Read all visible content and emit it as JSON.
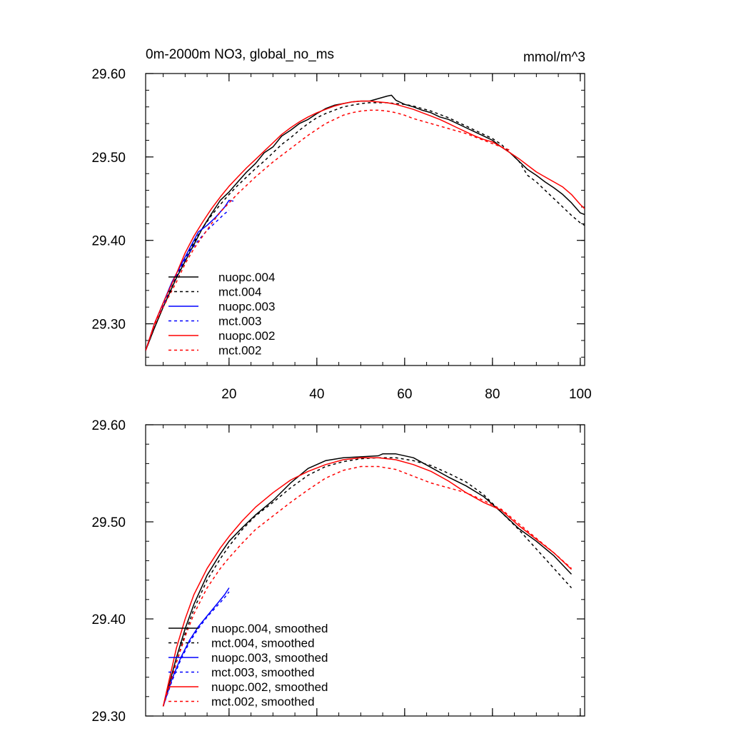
{
  "header": {
    "title": "0m-2000m NO3, global_no_ms",
    "units": "mmol/m^3"
  },
  "colors": {
    "black": "#000000",
    "blue": "#0000ff",
    "red": "#ff0000"
  },
  "chart_data": [
    {
      "type": "line",
      "title": "0m-2000m NO3, global_no_ms",
      "units_label": "mmol/m^3",
      "xlabel": "",
      "ylabel": "",
      "xlim": [
        1,
        101
      ],
      "ylim": [
        29.25,
        29.6
      ],
      "xticks": [
        20,
        40,
        60,
        80,
        100
      ],
      "xtick_labels": [
        "20",
        "40",
        "60",
        "80",
        "100"
      ],
      "yticks": [
        29.3,
        29.4,
        29.5,
        29.6
      ],
      "ytick_labels": [
        "29.30",
        "29.40",
        "29.50",
        "29.60"
      ],
      "legend_position": "bottom-left",
      "series": [
        {
          "name": "nuopc.004",
          "color": "#000000",
          "dash": false,
          "x": [
            1,
            3,
            5,
            8,
            10,
            12,
            14,
            16,
            18,
            20,
            22,
            24,
            26,
            28,
            30,
            32,
            34,
            36,
            38,
            40,
            42,
            44,
            46,
            48,
            50,
            52,
            54,
            56,
            57,
            58,
            60,
            62,
            64,
            66,
            68,
            70,
            72,
            74,
            76,
            78,
            80,
            82,
            84,
            86,
            88,
            90,
            92,
            94,
            96,
            98,
            100,
            101
          ],
          "y": [
            29.268,
            29.295,
            29.32,
            29.355,
            29.375,
            29.395,
            29.415,
            29.432,
            29.448,
            29.458,
            29.47,
            29.482,
            29.492,
            29.505,
            29.512,
            29.525,
            29.532,
            29.54,
            29.545,
            29.552,
            29.558,
            29.562,
            29.564,
            29.566,
            29.567,
            29.567,
            29.57,
            29.573,
            29.574,
            29.568,
            29.563,
            29.56,
            29.556,
            29.553,
            29.548,
            29.545,
            29.54,
            29.535,
            29.53,
            29.525,
            29.52,
            29.512,
            29.505,
            29.495,
            29.485,
            29.478,
            29.47,
            29.463,
            29.455,
            29.445,
            29.433,
            29.431
          ]
        },
        {
          "name": "mct.004",
          "color": "#000000",
          "dash": true,
          "x": [
            1,
            3,
            5,
            8,
            10,
            12,
            14,
            16,
            18,
            20,
            22,
            24,
            26,
            28,
            30,
            32,
            34,
            36,
            38,
            40,
            42,
            44,
            46,
            48,
            50,
            52,
            54,
            56,
            58,
            60,
            62,
            64,
            66,
            68,
            70,
            72,
            74,
            76,
            78,
            80,
            82,
            84,
            86,
            88,
            90,
            92,
            94,
            96,
            98,
            100,
            101
          ],
          "y": [
            29.268,
            29.295,
            29.32,
            29.356,
            29.378,
            29.398,
            29.415,
            29.43,
            29.443,
            29.455,
            29.466,
            29.476,
            29.486,
            29.495,
            29.505,
            29.515,
            29.523,
            29.532,
            29.54,
            29.547,
            29.552,
            29.556,
            29.56,
            29.562,
            29.564,
            29.565,
            29.565,
            29.565,
            29.564,
            29.563,
            29.561,
            29.558,
            29.555,
            29.551,
            29.547,
            29.542,
            29.537,
            29.532,
            29.527,
            29.522,
            29.515,
            29.505,
            29.495,
            29.478,
            29.47,
            29.46,
            29.45,
            29.44,
            29.43,
            29.421,
            29.418
          ]
        },
        {
          "name": "nuopc.003",
          "color": "#0000ff",
          "dash": false,
          "x": [
            1,
            3,
            5,
            7,
            9,
            11,
            13,
            15,
            17,
            19,
            20,
            21
          ],
          "y": [
            29.268,
            29.3,
            29.325,
            29.35,
            29.37,
            29.39,
            29.41,
            29.418,
            29.428,
            29.44,
            29.448,
            29.447
          ]
        },
        {
          "name": "mct.003",
          "color": "#0000ff",
          "dash": true,
          "x": [
            1,
            3,
            5,
            7,
            9,
            11,
            13,
            15,
            17,
            19,
            20
          ],
          "y": [
            29.268,
            29.298,
            29.322,
            29.348,
            29.368,
            29.386,
            29.4,
            29.412,
            29.422,
            29.432,
            29.436
          ]
        },
        {
          "name": "nuopc.002",
          "color": "#ff0000",
          "dash": false,
          "x": [
            1,
            3,
            5,
            8,
            10,
            12,
            14,
            16,
            18,
            20,
            22,
            24,
            26,
            28,
            30,
            32,
            34,
            36,
            38,
            40,
            42,
            44,
            46,
            48,
            50,
            52,
            54,
            56,
            58,
            60,
            62,
            64,
            66,
            68,
            70,
            72,
            74,
            76,
            78,
            80,
            82,
            84,
            86,
            88,
            90,
            92,
            94,
            96,
            98,
            100,
            101
          ],
          "y": [
            29.268,
            29.3,
            29.325,
            29.36,
            29.385,
            29.405,
            29.422,
            29.438,
            29.452,
            29.465,
            29.476,
            29.487,
            29.497,
            29.507,
            29.517,
            29.527,
            29.535,
            29.542,
            29.548,
            29.553,
            29.557,
            29.561,
            29.564,
            29.566,
            29.567,
            29.567,
            29.566,
            29.565,
            29.563,
            29.56,
            29.557,
            29.553,
            29.549,
            29.545,
            29.54,
            29.535,
            29.53,
            29.525,
            29.521,
            29.518,
            29.512,
            29.505,
            29.498,
            29.49,
            29.482,
            29.476,
            29.47,
            29.464,
            29.455,
            29.443,
            29.438
          ]
        },
        {
          "name": "mct.002",
          "color": "#ff0000",
          "dash": true,
          "x": [
            1,
            3,
            5,
            8,
            10,
            12,
            14,
            16,
            18,
            20,
            22,
            24,
            26,
            28,
            30,
            32,
            34,
            36,
            38,
            40,
            42,
            44,
            46,
            48,
            50,
            52,
            54,
            56,
            58,
            60,
            62,
            64,
            66,
            68,
            70,
            72,
            74,
            76,
            78,
            80,
            82,
            84
          ],
          "y": [
            29.268,
            29.298,
            29.32,
            29.35,
            29.372,
            29.39,
            29.405,
            29.42,
            29.434,
            29.445,
            29.456,
            29.466,
            29.476,
            29.485,
            29.494,
            29.502,
            29.51,
            29.518,
            29.526,
            29.533,
            29.54,
            29.545,
            29.55,
            29.553,
            29.555,
            29.556,
            29.556,
            29.555,
            29.553,
            29.55,
            29.546,
            29.543,
            29.54,
            29.537,
            29.534,
            29.531,
            29.528,
            29.524,
            29.52,
            29.516,
            29.512,
            29.508
          ]
        }
      ]
    },
    {
      "type": "line",
      "title": "",
      "xlabel": "",
      "ylabel": "",
      "xlim": [
        1,
        101
      ],
      "ylim": [
        29.3,
        29.6
      ],
      "xticks": [
        20,
        40,
        60,
        80,
        100
      ],
      "xtick_labels": [],
      "yticks": [
        29.3,
        29.4,
        29.5,
        29.6
      ],
      "ytick_labels": [
        "29.30",
        "29.40",
        "29.50",
        "29.60"
      ],
      "legend_position": "bottom-left",
      "series": [
        {
          "name": "nuopc.004, smoothed",
          "color": "#000000",
          "dash": false,
          "x": [
            5,
            8,
            10,
            12,
            15,
            18,
            20,
            23,
            26,
            30,
            34,
            38,
            42,
            46,
            50,
            54,
            55,
            58,
            62,
            66,
            70,
            74,
            78,
            82,
            86,
            90,
            94,
            98
          ],
          "y": [
            29.31,
            29.36,
            29.39,
            29.415,
            29.445,
            29.467,
            29.48,
            29.494,
            29.507,
            29.522,
            29.54,
            29.555,
            29.563,
            29.566,
            29.567,
            29.568,
            29.57,
            29.57,
            29.566,
            29.556,
            29.546,
            29.537,
            29.526,
            29.51,
            29.493,
            29.48,
            29.465,
            29.446
          ]
        },
        {
          "name": "mct.004, smoothed",
          "color": "#000000",
          "dash": true,
          "x": [
            5,
            8,
            10,
            12,
            15,
            18,
            20,
            23,
            26,
            30,
            34,
            38,
            42,
            46,
            50,
            54,
            58,
            62,
            66,
            70,
            74,
            78,
            82,
            86,
            90,
            94,
            98
          ],
          "y": [
            29.31,
            29.355,
            29.385,
            29.41,
            29.44,
            29.462,
            29.475,
            29.492,
            29.506,
            29.52,
            29.535,
            29.548,
            29.557,
            29.562,
            29.565,
            29.566,
            29.566,
            29.563,
            29.558,
            29.55,
            29.541,
            29.528,
            29.51,
            29.492,
            29.472,
            29.452,
            29.432
          ]
        },
        {
          "name": "nuopc.003, smoothed",
          "color": "#0000ff",
          "dash": false,
          "x": [
            5,
            7,
            9,
            11,
            13,
            15,
            17,
            19,
            20
          ],
          "y": [
            29.31,
            29.338,
            29.36,
            29.378,
            29.392,
            29.403,
            29.414,
            29.425,
            29.432
          ]
        },
        {
          "name": "mct.003, smoothed",
          "color": "#0000ff",
          "dash": true,
          "x": [
            5,
            7,
            9,
            11,
            13,
            15,
            17,
            19,
            20
          ],
          "y": [
            29.31,
            29.336,
            29.358,
            29.376,
            29.39,
            29.402,
            29.412,
            29.422,
            29.428
          ]
        },
        {
          "name": "nuopc.002, smoothed",
          "color": "#ff0000",
          "dash": false,
          "x": [
            5,
            8,
            10,
            12,
            15,
            18,
            20,
            23,
            26,
            30,
            34,
            38,
            42,
            46,
            50,
            54,
            58,
            62,
            66,
            70,
            74,
            78,
            82,
            86,
            90,
            94,
            98
          ],
          "y": [
            29.31,
            29.37,
            29.4,
            29.425,
            29.452,
            29.473,
            29.485,
            29.501,
            29.515,
            29.53,
            29.543,
            29.552,
            29.559,
            29.564,
            29.566,
            29.566,
            29.564,
            29.559,
            29.552,
            29.542,
            29.53,
            29.52,
            29.512,
            29.496,
            29.482,
            29.468,
            29.451
          ]
        },
        {
          "name": "mct.002, smoothed",
          "color": "#ff0000",
          "dash": true,
          "x": [
            5,
            8,
            10,
            12,
            15,
            18,
            20,
            23,
            26,
            30,
            34,
            38,
            42,
            46,
            50,
            54,
            58,
            62,
            66,
            70,
            74,
            78,
            82,
            86,
            90,
            94,
            98
          ],
          "y": [
            29.31,
            29.355,
            29.382,
            29.405,
            29.432,
            29.452,
            29.463,
            29.478,
            29.492,
            29.506,
            29.52,
            29.533,
            29.545,
            29.553,
            29.557,
            29.557,
            29.554,
            29.547,
            29.54,
            29.535,
            29.53,
            29.522,
            29.513,
            29.498,
            29.483,
            29.468,
            29.452
          ]
        }
      ]
    }
  ]
}
